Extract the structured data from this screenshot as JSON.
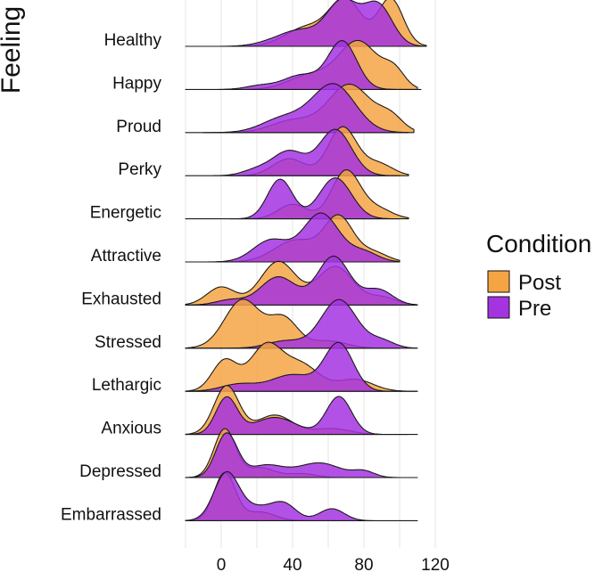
{
  "chart_data": {
    "type": "ridgeline density",
    "ylabel": "Feeling",
    "xlabel": "",
    "xlim": [
      -20,
      125
    ],
    "xticks": [
      0,
      40,
      80,
      120
    ],
    "grid": true,
    "legend": {
      "title": "Condition",
      "position": "right",
      "entries": [
        {
          "name": "Post",
          "color": "#F5A444"
        },
        {
          "name": "Pre",
          "color": "#A433E0"
        }
      ]
    },
    "series_colors": {
      "Post": "#F5A444",
      "Pre": "#A433E0"
    },
    "categories": [
      "Healthy",
      "Happy",
      "Proud",
      "Perky",
      "Energetic",
      "Attractive",
      "Exhausted",
      "Stressed",
      "Lethargic",
      "Anxious",
      "Depressed",
      "Embarrassed"
    ],
    "series": [
      {
        "name": "Post",
        "densities": [
          {
            "feeling": "Healthy",
            "range": [
              15,
              115
            ],
            "peaks": [
              {
                "mu": 70,
                "sigma": 9,
                "h": 0.95
              },
              {
                "mu": 95,
                "sigma": 7,
                "h": 1.0
              },
              {
                "mu": 48,
                "sigma": 12,
                "h": 0.4
              }
            ]
          },
          {
            "feeling": "Happy",
            "range": [
              15,
              110
            ],
            "peaks": [
              {
                "mu": 77,
                "sigma": 11,
                "h": 1.0
              },
              {
                "mu": 97,
                "sigma": 6,
                "h": 0.35
              },
              {
                "mu": 50,
                "sigma": 12,
                "h": 0.3
              }
            ]
          },
          {
            "feeling": "Proud",
            "range": [
              -10,
              108
            ],
            "peaks": [
              {
                "mu": 72,
                "sigma": 12,
                "h": 1.0
              },
              {
                "mu": 95,
                "sigma": 7,
                "h": 0.3
              },
              {
                "mu": 40,
                "sigma": 12,
                "h": 0.25
              }
            ]
          },
          {
            "feeling": "Perky",
            "range": [
              5,
              105
            ],
            "peaks": [
              {
                "mu": 68,
                "sigma": 8,
                "h": 1.0
              },
              {
                "mu": 38,
                "sigma": 9,
                "h": 0.35
              },
              {
                "mu": 88,
                "sigma": 8,
                "h": 0.25
              }
            ]
          },
          {
            "feeling": "Energetic",
            "range": [
              5,
              105
            ],
            "peaks": [
              {
                "mu": 70,
                "sigma": 8,
                "h": 1.0
              },
              {
                "mu": 40,
                "sigma": 8,
                "h": 0.3
              },
              {
                "mu": 88,
                "sigma": 8,
                "h": 0.2
              }
            ]
          },
          {
            "feeling": "Attractive",
            "range": [
              5,
              100
            ],
            "peaks": [
              {
                "mu": 66,
                "sigma": 8,
                "h": 0.9
              },
              {
                "mu": 42,
                "sigma": 12,
                "h": 0.45
              },
              {
                "mu": 85,
                "sigma": 8,
                "h": 0.2
              }
            ]
          },
          {
            "feeling": "Exhausted",
            "range": [
              -20,
              105
            ],
            "peaks": [
              {
                "mu": 32,
                "sigma": 10,
                "h": 0.85
              },
              {
                "mu": 64,
                "sigma": 10,
                "h": 0.75
              },
              {
                "mu": 0,
                "sigma": 8,
                "h": 0.35
              },
              {
                "mu": 90,
                "sigma": 8,
                "h": 0.15
              }
            ]
          },
          {
            "feeling": "Stressed",
            "range": [
              -20,
              100
            ],
            "peaks": [
              {
                "mu": 12,
                "sigma": 10,
                "h": 1.0
              },
              {
                "mu": 35,
                "sigma": 8,
                "h": 0.6
              },
              {
                "mu": 60,
                "sigma": 10,
                "h": 0.15
              }
            ]
          },
          {
            "feeling": "Lethargic",
            "range": [
              -20,
              110
            ],
            "peaks": [
              {
                "mu": 25,
                "sigma": 9,
                "h": 0.95
              },
              {
                "mu": 2,
                "sigma": 7,
                "h": 0.65
              },
              {
                "mu": 45,
                "sigma": 10,
                "h": 0.55
              },
              {
                "mu": 75,
                "sigma": 10,
                "h": 0.25
              }
            ]
          },
          {
            "feeling": "Anxious",
            "range": [
              -20,
              105
            ],
            "peaks": [
              {
                "mu": 3,
                "sigma": 7,
                "h": 1.0
              },
              {
                "mu": 30,
                "sigma": 10,
                "h": 0.4
              },
              {
                "mu": 62,
                "sigma": 10,
                "h": 0.12
              }
            ]
          },
          {
            "feeling": "Depressed",
            "range": [
              -20,
              80
            ],
            "peaks": [
              {
                "mu": 2,
                "sigma": 6,
                "h": 1.0
              },
              {
                "mu": 22,
                "sigma": 8,
                "h": 0.2
              },
              {
                "mu": 45,
                "sigma": 8,
                "h": 0.08
              }
            ]
          },
          {
            "feeling": "Embarrassed",
            "range": [
              -20,
              80
            ],
            "peaks": [
              {
                "mu": 2,
                "sigma": 6,
                "h": 1.0
              },
              {
                "mu": 22,
                "sigma": 8,
                "h": 0.18
              }
            ]
          }
        ]
      },
      {
        "name": "Pre",
        "densities": [
          {
            "feeling": "Healthy",
            "range": [
              -20,
              115
            ],
            "peaks": [
              {
                "mu": 68,
                "sigma": 9,
                "h": 0.95
              },
              {
                "mu": 88,
                "sigma": 8,
                "h": 0.85
              },
              {
                "mu": 45,
                "sigma": 10,
                "h": 0.3
              },
              {
                "mu": 30,
                "sigma": 10,
                "h": 0.1
              }
            ]
          },
          {
            "feeling": "Happy",
            "range": [
              -20,
              112
            ],
            "peaks": [
              {
                "mu": 68,
                "sigma": 8,
                "h": 1.0
              },
              {
                "mu": 45,
                "sigma": 10,
                "h": 0.3
              },
              {
                "mu": 22,
                "sigma": 8,
                "h": 0.08
              }
            ]
          },
          {
            "feeling": "Proud",
            "range": [
              -20,
              105
            ],
            "peaks": [
              {
                "mu": 63,
                "sigma": 12,
                "h": 1.0
              },
              {
                "mu": 35,
                "sigma": 12,
                "h": 0.3
              }
            ]
          },
          {
            "feeling": "Perky",
            "range": [
              -20,
              100
            ],
            "peaks": [
              {
                "mu": 64,
                "sigma": 9,
                "h": 0.95
              },
              {
                "mu": 38,
                "sigma": 9,
                "h": 0.5
              },
              {
                "mu": 20,
                "sigma": 8,
                "h": 0.12
              }
            ]
          },
          {
            "feeling": "Energetic",
            "range": [
              -20,
              100
            ],
            "peaks": [
              {
                "mu": 33,
                "sigma": 7,
                "h": 0.82
              },
              {
                "mu": 64,
                "sigma": 9,
                "h": 0.85
              }
            ]
          },
          {
            "feeling": "Attractive",
            "range": [
              -20,
              100
            ],
            "peaks": [
              {
                "mu": 56,
                "sigma": 10,
                "h": 1.0
              },
              {
                "mu": 28,
                "sigma": 10,
                "h": 0.45
              },
              {
                "mu": 80,
                "sigma": 8,
                "h": 0.2
              }
            ]
          },
          {
            "feeling": "Exhausted",
            "range": [
              -20,
              110
            ],
            "peaks": [
              {
                "mu": 63,
                "sigma": 9,
                "h": 0.95
              },
              {
                "mu": 32,
                "sigma": 10,
                "h": 0.55
              },
              {
                "mu": 88,
                "sigma": 8,
                "h": 0.3
              },
              {
                "mu": 5,
                "sigma": 8,
                "h": 0.1
              }
            ]
          },
          {
            "feeling": "Stressed",
            "range": [
              -20,
              110
            ],
            "peaks": [
              {
                "mu": 66,
                "sigma": 10,
                "h": 1.0
              },
              {
                "mu": 36,
                "sigma": 10,
                "h": 0.15
              },
              {
                "mu": 90,
                "sigma": 7,
                "h": 0.15
              }
            ]
          },
          {
            "feeling": "Lethargic",
            "range": [
              -20,
              110
            ],
            "peaks": [
              {
                "mu": 66,
                "sigma": 8,
                "h": 1.0
              },
              {
                "mu": 40,
                "sigma": 12,
                "h": 0.35
              },
              {
                "mu": 10,
                "sigma": 10,
                "h": 0.15
              }
            ]
          },
          {
            "feeling": "Anxious",
            "range": [
              -20,
              110
            ],
            "peaks": [
              {
                "mu": 3,
                "sigma": 6,
                "h": 0.75
              },
              {
                "mu": 66,
                "sigma": 7,
                "h": 0.78
              },
              {
                "mu": 30,
                "sigma": 12,
                "h": 0.35
              }
            ]
          },
          {
            "feeling": "Depressed",
            "range": [
              -20,
              110
            ],
            "peaks": [
              {
                "mu": 3,
                "sigma": 6,
                "h": 0.9
              },
              {
                "mu": 55,
                "sigma": 12,
                "h": 0.3
              },
              {
                "mu": 25,
                "sigma": 10,
                "h": 0.25
              },
              {
                "mu": 80,
                "sigma": 6,
                "h": 0.12
              }
            ]
          },
          {
            "feeling": "Embarrassed",
            "range": [
              -20,
              110
            ],
            "peaks": [
              {
                "mu": 3,
                "sigma": 7,
                "h": 1.0
              },
              {
                "mu": 35,
                "sigma": 7,
                "h": 0.35
              },
              {
                "mu": 62,
                "sigma": 7,
                "h": 0.25
              },
              {
                "mu": 20,
                "sigma": 8,
                "h": 0.25
              }
            ]
          }
        ]
      }
    ]
  }
}
